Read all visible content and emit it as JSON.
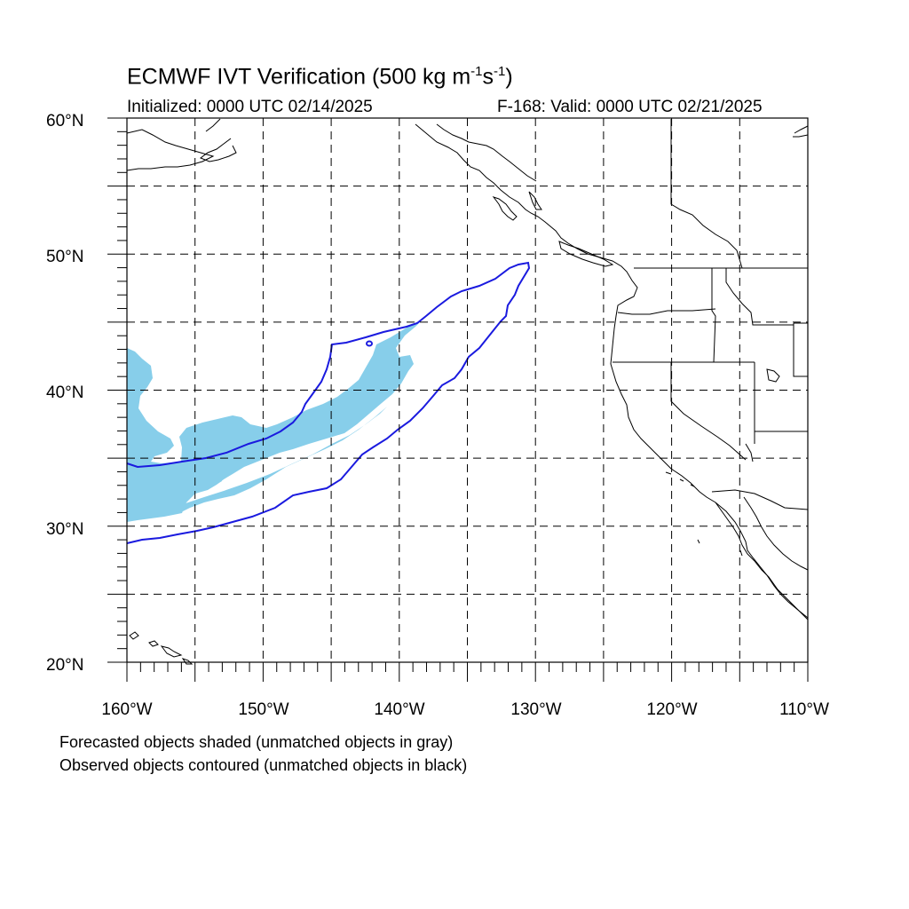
{
  "title": {
    "main": "ECMWF IVT Verification (500 kg m",
    "sup1": "-1",
    "mid": "s",
    "sup2": "-1",
    "close": ")"
  },
  "initialized": "Initialized: 0000 UTC 02/14/2025",
  "valid": "F-168: Valid: 0000 UTC 02/21/2025",
  "lat_labels": [
    "60°N",
    "50°N",
    "40°N",
    "30°N",
    "20°N"
  ],
  "lon_labels": [
    "160°W",
    "150°W",
    "140°W",
    "130°W",
    "120°W",
    "110°W"
  ],
  "notes": [
    "Forecasted objects shaded (unmatched objects in gray)",
    "Observed objects contoured (unmatched objects in black)"
  ],
  "colors": {
    "forecast_fill": "#87ceea",
    "observed_contour": "#1a1adf",
    "coastline": "#000000",
    "grid": "#000000"
  },
  "map": {
    "projection": "cylindrical-equidistant",
    "lon_range": [
      -160,
      -110
    ],
    "lat_range": [
      20,
      60
    ],
    "grid_spacing_deg": 5
  }
}
